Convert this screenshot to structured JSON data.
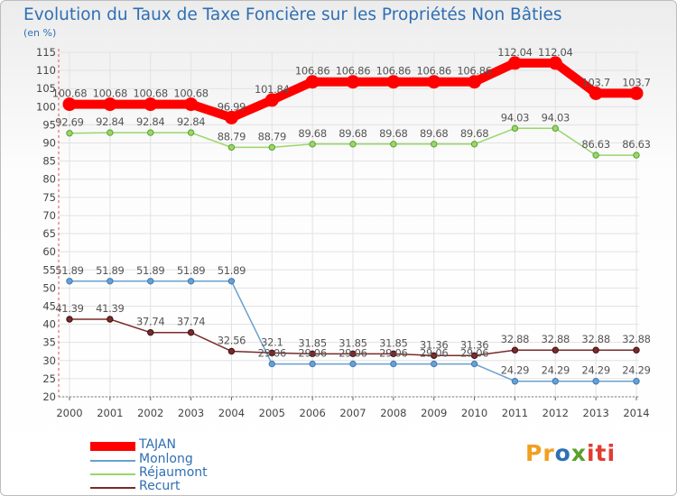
{
  "title": "Evolution du Taux de Taxe Foncière sur les Propriétés Non Bâties",
  "subtitle": "(en %)",
  "logo": {
    "p1": "Pr",
    "p2": "o",
    "p3": "x",
    "p4": "iti"
  },
  "chart_data": {
    "type": "line",
    "title": "Evolution du Taux de Taxe Foncière sur les Propriétés Non Bâties",
    "ylabel": "(en %)",
    "ylim": [
      20,
      115
    ],
    "yticks": [
      20,
      25,
      30,
      35,
      40,
      45,
      50,
      55,
      60,
      65,
      70,
      75,
      80,
      85,
      90,
      95,
      100,
      105,
      110,
      115
    ],
    "x": [
      "2000",
      "2001",
      "2002",
      "2003",
      "2004",
      "2005",
      "2006",
      "2007",
      "2008",
      "2009",
      "2010",
      "2011",
      "2012",
      "2013",
      "2014"
    ],
    "legend_position": "bottom-left",
    "series": [
      {
        "name": "TAJAN",
        "color": "#ff0000",
        "values": [
          100.68,
          100.68,
          100.68,
          100.68,
          96.99,
          101.84,
          106.86,
          106.86,
          106.86,
          106.86,
          106.86,
          112.04,
          112.04,
          103.7,
          103.7
        ],
        "labels": [
          "100.68",
          "100.68",
          "100.68",
          "100.68",
          "96.99",
          "101.84",
          "106.86",
          "106.86",
          "106.86",
          "106.86",
          "106.86",
          "112.04",
          "112.04",
          "103.7",
          "103.7"
        ]
      },
      {
        "name": "Monlong",
        "color": "#6aa0d0",
        "values": [
          51.89,
          51.89,
          51.89,
          51.89,
          51.89,
          29.06,
          29.06,
          29.06,
          29.06,
          29.06,
          29.06,
          24.29,
          24.29,
          24.29,
          24.29
        ],
        "labels": [
          "51.89",
          "51.89",
          "51.89",
          "51.89",
          "51.89",
          "29.06",
          "29.06",
          "29.06",
          "29.06",
          "29.06",
          "29.06",
          "24.29",
          "24.29",
          "24.29",
          "24.29"
        ]
      },
      {
        "name": "Réjaumont",
        "color": "#9ad66a",
        "values": [
          92.69,
          92.84,
          92.84,
          92.84,
          88.79,
          88.79,
          89.68,
          89.68,
          89.68,
          89.68,
          89.68,
          94.03,
          94.03,
          86.63,
          86.63
        ],
        "labels": [
          "92.69",
          "92.84",
          "92.84",
          "92.84",
          "88.79",
          "88.79",
          "89.68",
          "89.68",
          "89.68",
          "89.68",
          "89.68",
          "94.03",
          "94.03",
          "86.63",
          "86.63"
        ]
      },
      {
        "name": "Recurt",
        "color": "#7a2a2a",
        "values": [
          41.39,
          41.39,
          37.74,
          37.74,
          32.56,
          32.1,
          31.85,
          31.85,
          31.85,
          31.36,
          31.36,
          32.88,
          32.88,
          32.88,
          32.88
        ],
        "labels": [
          "41.39",
          "41.39",
          "37.74",
          "37.74",
          "32.56",
          "32.1",
          "31.85",
          "31.85",
          "31.85",
          "31.36",
          "31.36",
          "32.88",
          "32.88",
          "32.88",
          "32.88"
        ]
      }
    ]
  }
}
